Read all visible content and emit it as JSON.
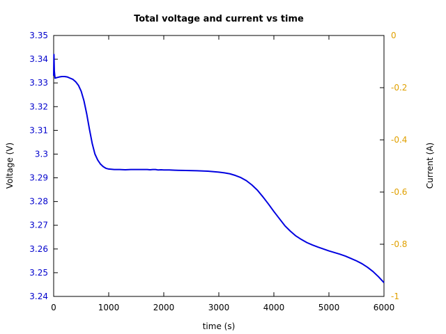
{
  "chart_data": {
    "type": "line",
    "title": "Total voltage and current vs time",
    "xlabel": "time (s)",
    "ylabel": "Voltage (V)",
    "y2label": "Current (A)",
    "xlim": [
      0,
      6000
    ],
    "ylim": [
      3.24,
      3.35
    ],
    "y2lim": [
      -1,
      0
    ],
    "grid": false,
    "x_ticks": [
      0,
      1000,
      2000,
      3000,
      4000,
      5000,
      6000
    ],
    "x_tick_labels": [
      "0",
      "1000",
      "2000",
      "3000",
      "4000",
      "5000",
      "6000"
    ],
    "y_ticks": [
      3.24,
      3.25,
      3.26,
      3.27,
      3.28,
      3.29,
      3.3,
      3.31,
      3.32,
      3.33,
      3.34,
      3.35
    ],
    "y_tick_labels": [
      "3.24",
      "3.25",
      "3.26",
      "3.27",
      "3.28",
      "3.29",
      "3.3",
      "3.31",
      "3.32",
      "3.33",
      "3.34",
      "3.35"
    ],
    "y2_ticks": [
      0,
      -0.2,
      -0.4,
      -0.6,
      -0.8,
      -1
    ],
    "y2_tick_labels": [
      "0",
      "-0.2",
      "-0.4",
      "-0.6",
      "-0.8",
      "-1"
    ],
    "colors": {
      "voltage_line": "#0000e0",
      "left_axis_text": "#0000cc",
      "right_axis_text": "#e0a000",
      "frame": "#000000"
    },
    "series": [
      {
        "axis": "left",
        "x": [
          0,
          5,
          12,
          25,
          50,
          100,
          150,
          200,
          250,
          300,
          350,
          400,
          450,
          500,
          550,
          600,
          650,
          700,
          750,
          800,
          850,
          900,
          950,
          1000,
          1050,
          1100,
          1150,
          1200,
          1300,
          1400,
          1500,
          1600,
          1700,
          1750,
          1800,
          1850,
          1900,
          1950,
          2000,
          2100,
          2200,
          2400,
          2600,
          2800,
          3000,
          3100,
          3200,
          3300,
          3400,
          3500,
          3600,
          3700,
          3800,
          3900,
          4000,
          4100,
          4200,
          4300,
          4400,
          4500,
          4600,
          4700,
          4800,
          4900,
          5000,
          5100,
          5200,
          5300,
          5400,
          5500,
          5600,
          5700,
          5800,
          5900,
          6000
        ],
        "values": [
          3.333,
          3.342,
          3.335,
          3.332,
          3.3322,
          3.3325,
          3.3327,
          3.3327,
          3.3325,
          3.332,
          3.3315,
          3.3305,
          3.329,
          3.3265,
          3.3225,
          3.317,
          3.3105,
          3.3045,
          3.3,
          3.2975,
          3.2958,
          3.2947,
          3.294,
          3.2937,
          3.2936,
          3.2935,
          3.2935,
          3.2935,
          3.2934,
          3.2935,
          3.2935,
          3.2935,
          3.2935,
          3.2934,
          3.2935,
          3.2935,
          3.2933,
          3.2934,
          3.2933,
          3.2933,
          3.2932,
          3.2931,
          3.293,
          3.2928,
          3.2924,
          3.2921,
          3.2917,
          3.291,
          3.2901,
          3.2888,
          3.287,
          3.2848,
          3.282,
          3.279,
          3.2758,
          3.2728,
          3.2698,
          3.2675,
          3.2655,
          3.264,
          3.2627,
          3.2617,
          3.2608,
          3.26,
          3.2592,
          3.2585,
          3.2578,
          3.257,
          3.256,
          3.255,
          3.2538,
          3.2523,
          3.2505,
          3.2483,
          3.2458
        ]
      }
    ]
  }
}
